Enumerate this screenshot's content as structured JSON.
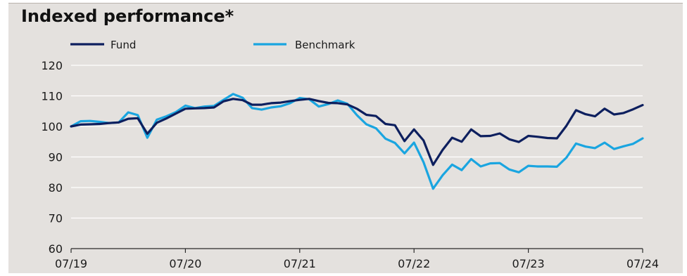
{
  "chart_data": {
    "type": "line",
    "title": "Indexed performance*",
    "xlabel": "",
    "ylabel": "",
    "x_tick_labels": [
      "07/19",
      "07/20",
      "07/21",
      "07/22",
      "07/23",
      "07/24"
    ],
    "y_ticks": [
      60,
      70,
      80,
      90,
      100,
      110,
      120
    ],
    "ylim": [
      60,
      120
    ],
    "xlim": [
      0,
      60
    ],
    "grid": "horizontal",
    "legend_position": "top",
    "x_unit": "months since 07/19",
    "series": [
      {
        "name": "Fund",
        "color": "#0d1f5e",
        "x": [
          0,
          1,
          2,
          3,
          4,
          5,
          6,
          7,
          8,
          9,
          10,
          11,
          12,
          13,
          14,
          15,
          16,
          17,
          18,
          19,
          20,
          21,
          22,
          23,
          24,
          25,
          26,
          27,
          28,
          29,
          30,
          31,
          32,
          33,
          34,
          35,
          36,
          37,
          38,
          39,
          40,
          41,
          42,
          43,
          44,
          45,
          46,
          47,
          48,
          49,
          50,
          51,
          52,
          53,
          54,
          55,
          56,
          57,
          58,
          59,
          60
        ],
        "values": [
          100,
          100.6,
          100.7,
          100.8,
          101.1,
          101.3,
          102.5,
          102.7,
          97.6,
          101.2,
          102.6,
          104.2,
          105.8,
          105.9,
          106.0,
          106.2,
          108.2,
          109.0,
          108.6,
          107.1,
          107.1,
          107.6,
          107.8,
          108.3,
          108.7,
          109.0,
          108.3,
          107.7,
          107.6,
          107.2,
          105.8,
          103.8,
          103.4,
          100.8,
          100.4,
          95.2,
          99.0,
          95.4,
          87.4,
          92.3,
          96.3,
          95.0,
          99.0,
          96.8,
          96.9,
          97.7,
          95.8,
          94.9,
          96.9,
          96.6,
          96.2,
          96.1,
          100.2,
          105.3,
          104.0,
          103.3,
          105.8,
          103.9,
          104.4,
          105.6,
          107.0
        ]
      },
      {
        "name": "Benchmark",
        "color": "#1aa5e0",
        "x": [
          0,
          1,
          2,
          3,
          4,
          5,
          6,
          7,
          8,
          9,
          10,
          11,
          12,
          13,
          14,
          15,
          16,
          17,
          18,
          19,
          20,
          21,
          22,
          23,
          24,
          25,
          26,
          27,
          28,
          29,
          30,
          31,
          32,
          33,
          34,
          35,
          36,
          37,
          38,
          39,
          40,
          41,
          42,
          43,
          44,
          45,
          46,
          47,
          48,
          49,
          50,
          51,
          52,
          53,
          54,
          55,
          56,
          57,
          58,
          59,
          60
        ],
        "values": [
          100,
          101.7,
          101.8,
          101.5,
          101.1,
          101.3,
          104.6,
          103.7,
          96.3,
          102.2,
          103.3,
          104.7,
          106.8,
          106.0,
          106.5,
          106.7,
          108.7,
          110.6,
          109.4,
          106.0,
          105.5,
          106.2,
          106.6,
          107.6,
          109.3,
          108.9,
          106.5,
          107.3,
          108.5,
          107.4,
          103.7,
          100.7,
          99.4,
          96.0,
          94.6,
          91.2,
          94.7,
          88.3,
          79.6,
          84.0,
          87.5,
          85.7,
          89.3,
          86.9,
          87.9,
          88.0,
          85.9,
          85.0,
          87.1,
          86.9,
          86.9,
          86.8,
          89.8,
          94.4,
          93.4,
          92.9,
          94.7,
          92.6,
          93.5,
          94.3,
          96.1
        ]
      }
    ]
  }
}
